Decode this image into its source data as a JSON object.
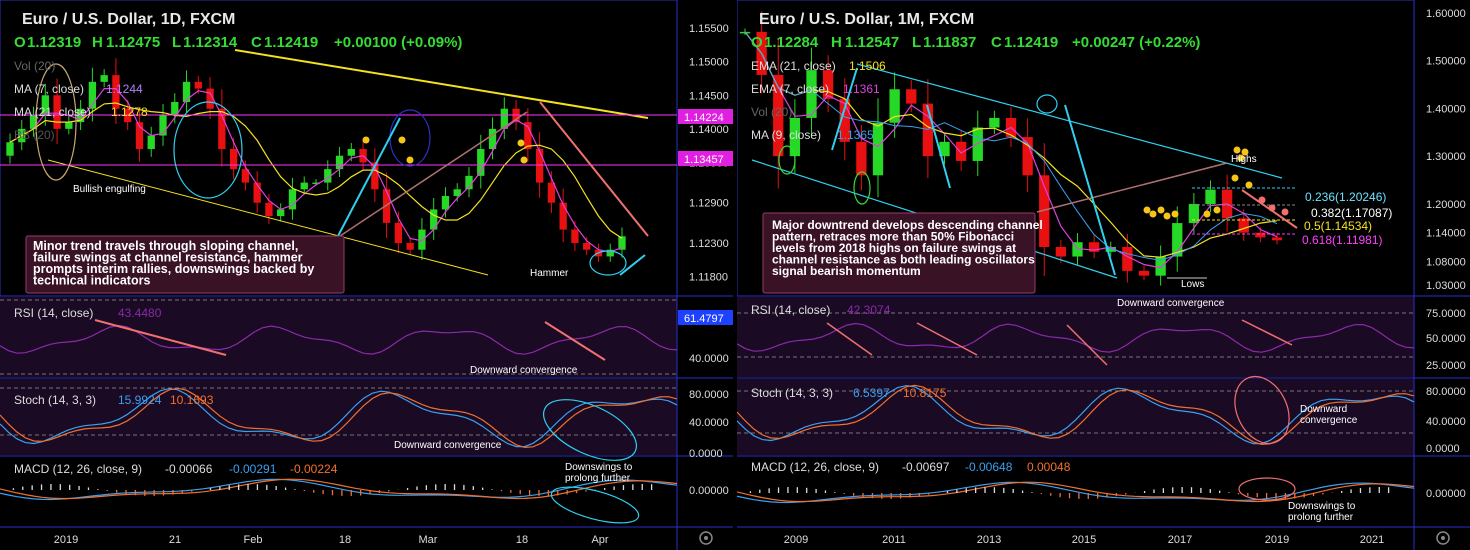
{
  "colors": {
    "background": "#000000",
    "up": "#26d926",
    "down": "#e81010",
    "panel_border": "#2a30c8",
    "panel_bg": "#0a0812",
    "sub_bg": "#1a0a24",
    "yellow": "#f5e11e",
    "magenta_line": "#ff33ff",
    "cyan": "#2fd0f0",
    "salmon": "#f07070",
    "rsi_line": "#8a2aa8",
    "stoch_k": "#3aa0f0",
    "stoch_d": "#f07030",
    "macd_line": "#3aa0f0",
    "macd_signal": "#f07030",
    "fib_label_white": "#ffffff",
    "fib_label_cyan": "#6fe0ff",
    "fib_label_yellow": "#f5e11e",
    "fib_label_magenta": "#ff40ff",
    "price_tag_magenta": "#e020e0",
    "price_tag_blue": "#1e40ff"
  },
  "left": {
    "title": "Euro / U.S. Dollar, 1D, FXCM",
    "ohlc": {
      "o_label": "O",
      "o": "1.12319",
      "h_label": "H",
      "h": "1.12475",
      "l_label": "L",
      "l": "1.12314",
      "c_label": "C",
      "c": "1.12419",
      "change": "+0.00100 (+0.09%)"
    },
    "indicators": [
      {
        "label": "Vol (20)",
        "value": ""
      },
      {
        "label": "MA (7, close)",
        "value": "1.1244"
      },
      {
        "label": "MA (21, close)",
        "value": "1.1278"
      },
      {
        "label": "BB (20)",
        "value": ""
      }
    ],
    "price_axis": [
      "1.15500",
      "1.15000",
      "1.14500",
      "1.14000",
      "1.13500",
      "1.12900",
      "1.12300",
      "1.11800"
    ],
    "price_tags": [
      {
        "text": "1.14224",
        "color": "magenta"
      },
      {
        "text": "1.13457",
        "color": "magenta"
      }
    ],
    "rsi_tag": "61.4797",
    "x_axis": [
      "2019",
      "21",
      "Feb",
      "18",
      "Mar",
      "18",
      "Apr"
    ],
    "annotations": {
      "bullish_engulfing": "Bullish engulfing",
      "hammer": "Hammer",
      "note": "Minor trend travels through sloping channel, failure swings at channel resistance, hammer prompts interim rallies, downswings backed by technical indicators",
      "downward_convergence_rsi": "Downward convergence",
      "downward_convergence_stoch": "Downward convergence",
      "downswings": "Downswings to prolong further"
    },
    "rsi": {
      "label": "RSI (14, close)",
      "value": "43.4480",
      "axis": [
        "40.0000"
      ]
    },
    "stoch": {
      "label": "Stoch (14, 3, 3)",
      "k": "15.9924",
      "d": "10.1693",
      "axis": [
        "80.0000",
        "40.0000",
        "0.0000"
      ]
    },
    "macd": {
      "label": "MACD (12, 26, close, 9)",
      "v1": "-0.00066",
      "v2": "-0.00291",
      "v3": "-0.00224",
      "axis": [
        "0.00000"
      ]
    }
  },
  "right": {
    "title": "Euro / U.S. Dollar, 1M, FXCM",
    "ohlc": {
      "o_label": "O",
      "o": "1.12284",
      "h_label": "H",
      "h": "1.12547",
      "l_label": "L",
      "l": "1.11837",
      "c_label": "C",
      "c": "1.12419",
      "change": "+0.00247 (+0.22%)"
    },
    "indicators": [
      {
        "label": "EMA (21, close)",
        "value": "1.1506"
      },
      {
        "label": "EMA (7, close)",
        "value": "1.1361"
      },
      {
        "label": "Vol (20)",
        "value": ""
      },
      {
        "label": "MA (9, close)",
        "value": "1.1365"
      }
    ],
    "price_axis": [
      "1.60000",
      "1.50000",
      "1.40000",
      "1.30000",
      "1.20000",
      "1.14000",
      "1.08000",
      "1.03000"
    ],
    "fib_levels": [
      {
        "text": "0.236(1.20246)",
        "color": "cyan"
      },
      {
        "text": "0.382(1.17087)",
        "color": "white"
      },
      {
        "text": "0.5(1.14534)",
        "color": "yellow"
      },
      {
        "text": "0.618(1.11981)",
        "color": "magenta"
      }
    ],
    "x_axis": [
      "2009",
      "2011",
      "2013",
      "2015",
      "2017",
      "2019",
      "2021"
    ],
    "annotations": {
      "highs": "Highs",
      "lows": "Lows",
      "note": "Major downtrend develops descending channel pattern, retraces more than 50% Fibonacci levels from 2018 highs on failure swings at channel resistance as both leading oscillators signal bearish momentum",
      "downward_convergence_rsi": "Downward convergence",
      "downward_convergence_stoch": "Downward convergence",
      "downswings": "Downswings to prolong further"
    },
    "rsi": {
      "label": "RSI (14, close)",
      "value": "42.3074",
      "axis": [
        "75.0000",
        "50.0000",
        "25.0000"
      ]
    },
    "stoch": {
      "label": "Stoch (14, 3, 3)",
      "k": "6.5397",
      "d": "10.8175",
      "axis": [
        "80.0000",
        "40.0000",
        "0.0000"
      ]
    },
    "macd": {
      "label": "MACD (12, 26, close, 9)",
      "v1": "-0.00697",
      "v2": "-0.00648",
      "v3": "0.00048",
      "axis": [
        "0.00000"
      ]
    }
  },
  "chart_data": [
    {
      "type": "candlestick",
      "title": "Euro / U.S. Dollar, 1D, FXCM",
      "x_ticks": [
        "2019",
        "21",
        "Feb",
        "18",
        "Mar",
        "18",
        "Apr"
      ],
      "ylim": [
        1.116,
        1.158
      ],
      "y_ticks": [
        1.155,
        1.15,
        1.145,
        1.14,
        1.135,
        1.129,
        1.123,
        1.118
      ],
      "close_path_approx": [
        1.138,
        1.14,
        1.142,
        1.145,
        1.14,
        1.141,
        1.143,
        1.147,
        1.148,
        1.143,
        1.141,
        1.137,
        1.139,
        1.142,
        1.144,
        1.147,
        1.146,
        1.143,
        1.137,
        1.134,
        1.132,
        1.129,
        1.127,
        1.128,
        1.131,
        1.132,
        1.132,
        1.134,
        1.136,
        1.137,
        1.135,
        1.131,
        1.126,
        1.123,
        1.122,
        1.125,
        1.128,
        1.13,
        1.131,
        1.133,
        1.137,
        1.14,
        1.143,
        1.141,
        1.137,
        1.132,
        1.129,
        1.125,
        1.123,
        1.122,
        1.121,
        1.122,
        1.124
      ],
      "last": {
        "open": 1.12319,
        "high": 1.12475,
        "low": 1.12314,
        "close": 1.12419
      }
    },
    {
      "type": "candlestick",
      "title": "Euro / U.S. Dollar, 1M, FXCM",
      "x_ticks": [
        "2009",
        "2011",
        "2013",
        "2015",
        "2017",
        "2019",
        "2021"
      ],
      "ylim": [
        1.02,
        1.61
      ],
      "y_ticks": [
        1.6,
        1.5,
        1.4,
        1.3,
        1.2,
        1.14,
        1.08,
        1.03
      ],
      "close_path_approx": [
        1.56,
        1.47,
        1.3,
        1.38,
        1.48,
        1.42,
        1.33,
        1.26,
        1.37,
        1.44,
        1.41,
        1.3,
        1.33,
        1.29,
        1.36,
        1.38,
        1.34,
        1.26,
        1.11,
        1.09,
        1.12,
        1.1,
        1.11,
        1.06,
        1.05,
        1.09,
        1.16,
        1.2,
        1.23,
        1.17,
        1.14,
        1.13,
        1.124
      ],
      "fibonacci": [
        {
          "level": 0.236,
          "price": 1.20246
        },
        {
          "level": 0.382,
          "price": 1.17087
        },
        {
          "level": 0.5,
          "price": 1.14534
        },
        {
          "level": 0.618,
          "price": 1.11981
        }
      ],
      "last": {
        "open": 1.12284,
        "high": 1.12547,
        "low": 1.11837,
        "close": 1.12419
      }
    }
  ]
}
